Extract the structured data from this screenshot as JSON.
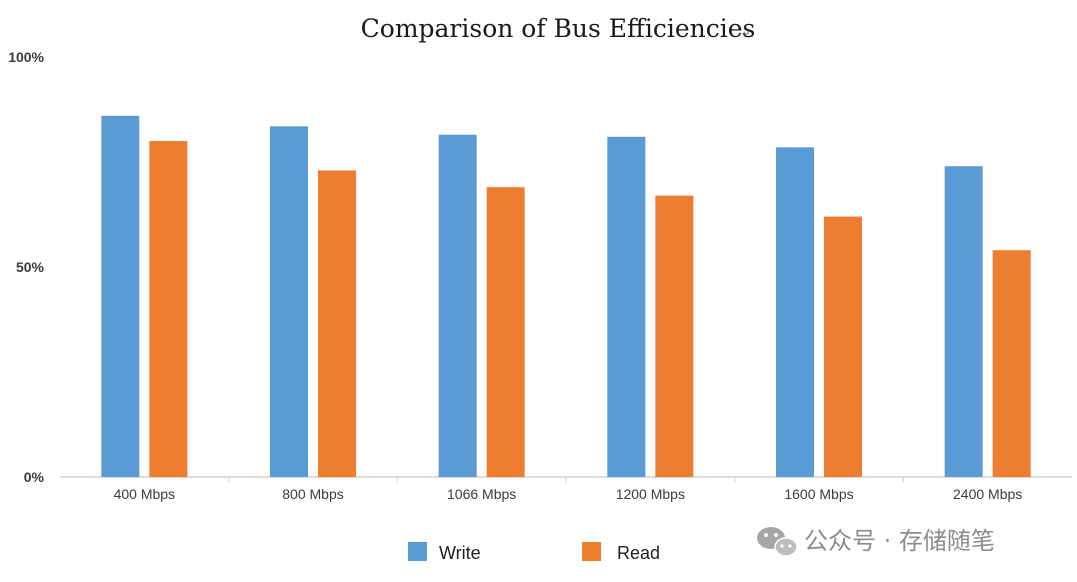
{
  "chart_data": {
    "type": "bar",
    "title": "Comparison of Bus Efficiencies",
    "title_mark": "↵",
    "categories": [
      "400 Mbps",
      "800 Mbps",
      "1066 Mbps",
      "1200 Mbps",
      "1600 Mbps",
      "2400 Mbps"
    ],
    "series": [
      {
        "name": "Write",
        "color": "#5B9BD5",
        "values": [
          86,
          83.5,
          81.5,
          81,
          78.5,
          74
        ]
      },
      {
        "name": "Read",
        "color": "#ED7D31",
        "values": [
          80,
          73,
          69,
          67,
          62,
          54
        ]
      }
    ],
    "ylim": [
      0,
      100
    ],
    "yticks": [
      0,
      50,
      100
    ],
    "ytick_labels": [
      "0%",
      "50%",
      "100%"
    ],
    "xlabel": "",
    "ylabel": "",
    "grid": false,
    "legend_position": "bottom"
  },
  "watermark": {
    "text": "公众号 · 存储随笔",
    "icon": "wechat-icon"
  }
}
